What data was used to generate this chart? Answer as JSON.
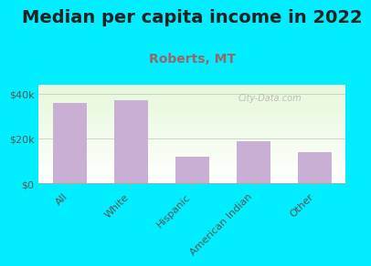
{
  "title": "Median per capita income in 2022",
  "subtitle": "Roberts, MT",
  "categories": [
    "All",
    "White",
    "Hispanic",
    "American Indian",
    "Other"
  ],
  "values": [
    36000,
    37000,
    12000,
    19000,
    14000
  ],
  "bar_color": "#c9afd4",
  "title_fontsize": 14,
  "subtitle_fontsize": 10,
  "subtitle_color": "#996666",
  "background_color": "#00eeff",
  "yticks": [
    0,
    20000,
    40000
  ],
  "ytick_labels": [
    "$0",
    "$20k",
    "$40k"
  ],
  "ylim": [
    0,
    44000
  ],
  "watermark": "City-Data.com"
}
